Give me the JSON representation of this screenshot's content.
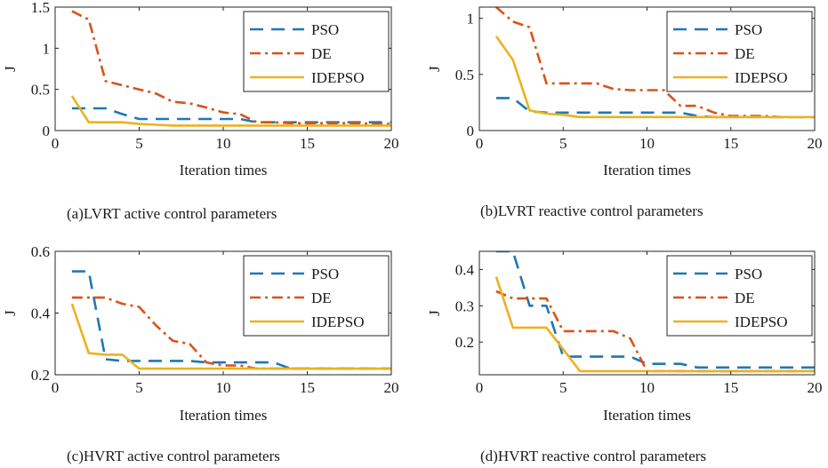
{
  "figure": {
    "background": "#ffffff",
    "axis_color": "#262626",
    "series_styles": [
      {
        "name": "PSO",
        "color": "#1f77b4",
        "dash": "dashed"
      },
      {
        "name": "DE",
        "color": "#d95319",
        "dash": "dashdot"
      },
      {
        "name": "IDEPSO",
        "color": "#edb120",
        "dash": "solid"
      }
    ]
  },
  "chart_data": [
    {
      "type": "line",
      "caption": "(a)LVRT active control parameters",
      "xlabel": "Iteration times",
      "ylabel": "J",
      "xlim": [
        0,
        20
      ],
      "ylim": [
        0,
        1.5
      ],
      "xticks": [
        0,
        5,
        10,
        15,
        20
      ],
      "yticks": [
        0,
        0.5,
        1,
        1.5
      ],
      "xtick_labels": [
        "0",
        "5",
        "10",
        "15",
        "20"
      ],
      "ytick_labels": [
        "0",
        "0.5",
        "1",
        "1.5"
      ],
      "legend": [
        "PSO",
        "DE",
        "IDEPSO"
      ],
      "legend_position": "top-right",
      "series": [
        {
          "name": "PSO",
          "x": [
            1,
            2,
            3,
            4,
            5,
            6,
            7,
            8,
            9,
            10,
            11,
            12,
            13,
            14,
            15,
            16,
            17,
            18,
            19,
            20
          ],
          "values": [
            0.27,
            0.27,
            0.27,
            0.2,
            0.14,
            0.14,
            0.14,
            0.14,
            0.14,
            0.14,
            0.14,
            0.1,
            0.1,
            0.1,
            0.1,
            0.1,
            0.1,
            0.1,
            0.1,
            0.1
          ]
        },
        {
          "name": "DE",
          "x": [
            1,
            2,
            3,
            4,
            5,
            6,
            7,
            8,
            9,
            10,
            11,
            12,
            13,
            14,
            15,
            16,
            17,
            18,
            19,
            20
          ],
          "values": [
            1.45,
            1.35,
            0.6,
            0.55,
            0.5,
            0.45,
            0.35,
            0.33,
            0.28,
            0.22,
            0.2,
            0.1,
            0.1,
            0.09,
            0.09,
            0.09,
            0.09,
            0.09,
            0.08,
            0.08
          ]
        },
        {
          "name": "IDEPSO",
          "x": [
            1,
            2,
            3,
            4,
            5,
            6,
            7,
            8,
            9,
            10,
            11,
            12,
            13,
            14,
            15,
            16,
            17,
            18,
            19,
            20
          ],
          "values": [
            0.42,
            0.1,
            0.1,
            0.1,
            0.08,
            0.07,
            0.06,
            0.06,
            0.06,
            0.06,
            0.06,
            0.06,
            0.06,
            0.06,
            0.06,
            0.06,
            0.06,
            0.06,
            0.06,
            0.06
          ]
        }
      ]
    },
    {
      "type": "line",
      "caption": "(b)LVRT reactive control parameters",
      "xlabel": "Iteration times",
      "ylabel": "J",
      "xlim": [
        0,
        20
      ],
      "ylim": [
        0,
        1.1
      ],
      "xticks": [
        0,
        5,
        10,
        15,
        20
      ],
      "yticks": [
        0,
        0.5,
        1
      ],
      "xtick_labels": [
        "0",
        "5",
        "10",
        "15",
        "20"
      ],
      "ytick_labels": [
        "0",
        "0.5",
        "1"
      ],
      "legend": [
        "PSO",
        "DE",
        "IDEPSO"
      ],
      "legend_position": "top-right",
      "series": [
        {
          "name": "PSO",
          "x": [
            1,
            2,
            3,
            4,
            5,
            6,
            7,
            8,
            9,
            10,
            11,
            12,
            13,
            14,
            15,
            16,
            17,
            18,
            19,
            20
          ],
          "values": [
            0.29,
            0.29,
            0.17,
            0.16,
            0.16,
            0.16,
            0.16,
            0.16,
            0.16,
            0.16,
            0.16,
            0.16,
            0.13,
            0.12,
            0.12,
            0.12,
            0.12,
            0.12,
            0.12,
            0.12
          ]
        },
        {
          "name": "DE",
          "x": [
            1,
            2,
            3,
            4,
            5,
            6,
            7,
            8,
            9,
            10,
            11,
            12,
            13,
            14,
            15,
            16,
            17,
            18,
            19,
            20
          ],
          "values": [
            1.1,
            0.97,
            0.92,
            0.42,
            0.42,
            0.42,
            0.42,
            0.37,
            0.36,
            0.36,
            0.36,
            0.22,
            0.22,
            0.16,
            0.13,
            0.13,
            0.13,
            0.12,
            0.12,
            0.12
          ]
        },
        {
          "name": "IDEPSO",
          "x": [
            1,
            2,
            3,
            4,
            5,
            6,
            7,
            8,
            9,
            10,
            11,
            12,
            13,
            14,
            15,
            16,
            17,
            18,
            19,
            20
          ],
          "values": [
            0.84,
            0.63,
            0.18,
            0.15,
            0.14,
            0.12,
            0.12,
            0.12,
            0.12,
            0.12,
            0.12,
            0.12,
            0.12,
            0.12,
            0.12,
            0.12,
            0.12,
            0.12,
            0.12,
            0.12
          ]
        }
      ]
    },
    {
      "type": "line",
      "caption": "(c)HVRT active control parameters",
      "xlabel": "Iteration times",
      "ylabel": "J",
      "xlim": [
        0,
        20
      ],
      "ylim": [
        0.2,
        0.6
      ],
      "xticks": [
        0,
        5,
        10,
        15,
        20
      ],
      "yticks": [
        0.2,
        0.4,
        0.6
      ],
      "xtick_labels": [
        "0",
        "5",
        "10",
        "15",
        "20"
      ],
      "ytick_labels": [
        "0.2",
        "0.4",
        "0.6"
      ],
      "legend": [
        "PSO",
        "DE",
        "IDEPSO"
      ],
      "legend_position": "top-right",
      "series": [
        {
          "name": "PSO",
          "x": [
            1,
            2,
            3,
            4,
            5,
            6,
            7,
            8,
            9,
            10,
            11,
            12,
            13,
            14,
            15,
            16,
            17,
            18,
            19,
            20
          ],
          "values": [
            0.535,
            0.535,
            0.25,
            0.245,
            0.245,
            0.245,
            0.245,
            0.245,
            0.24,
            0.24,
            0.24,
            0.24,
            0.24,
            0.22,
            0.22,
            0.22,
            0.22,
            0.22,
            0.22,
            0.22
          ]
        },
        {
          "name": "DE",
          "x": [
            1,
            2,
            3,
            4,
            5,
            6,
            7,
            8,
            9,
            10,
            11,
            12,
            13,
            14,
            15,
            16,
            17,
            18,
            19,
            20
          ],
          "values": [
            0.45,
            0.45,
            0.45,
            0.43,
            0.42,
            0.36,
            0.31,
            0.3,
            0.24,
            0.23,
            0.23,
            0.22,
            0.22,
            0.22,
            0.22,
            0.22,
            0.22,
            0.22,
            0.22,
            0.22
          ]
        },
        {
          "name": "IDEPSO",
          "x": [
            1,
            2,
            3,
            4,
            5,
            6,
            7,
            8,
            9,
            10,
            11,
            12,
            13,
            14,
            15,
            16,
            17,
            18,
            19,
            20
          ],
          "values": [
            0.43,
            0.27,
            0.265,
            0.265,
            0.22,
            0.22,
            0.22,
            0.22,
            0.22,
            0.22,
            0.22,
            0.22,
            0.22,
            0.22,
            0.22,
            0.22,
            0.22,
            0.22,
            0.22,
            0.22
          ]
        }
      ]
    },
    {
      "type": "line",
      "caption": "(d)HVRT reactive control parameters",
      "xlabel": "Iteration times",
      "ylabel": "J",
      "xlim": [
        0,
        20
      ],
      "ylim": [
        0.11,
        0.45
      ],
      "xticks": [
        0,
        5,
        10,
        15,
        20
      ],
      "yticks": [
        0.2,
        0.3,
        0.4
      ],
      "xtick_labels": [
        "0",
        "5",
        "10",
        "15",
        "20"
      ],
      "ytick_labels": [
        "0.2",
        "0.3",
        "0.4"
      ],
      "legend": [
        "PSO",
        "DE",
        "IDEPSO"
      ],
      "legend_position": "top-right",
      "series": [
        {
          "name": "PSO",
          "x": [
            1,
            2,
            3,
            4,
            5,
            6,
            7,
            8,
            9,
            10,
            11,
            12,
            13,
            14,
            15,
            16,
            17,
            18,
            19,
            20
          ],
          "values": [
            0.45,
            0.45,
            0.3,
            0.3,
            0.16,
            0.16,
            0.16,
            0.16,
            0.16,
            0.14,
            0.14,
            0.14,
            0.13,
            0.13,
            0.13,
            0.13,
            0.13,
            0.13,
            0.13,
            0.13
          ]
        },
        {
          "name": "DE",
          "x": [
            1,
            2,
            3,
            4,
            5,
            6,
            7,
            8,
            9,
            10,
            11,
            12,
            13,
            14,
            15,
            16,
            17,
            18,
            19,
            20
          ],
          "values": [
            0.34,
            0.32,
            0.32,
            0.32,
            0.23,
            0.23,
            0.23,
            0.23,
            0.21,
            0.12,
            0.12,
            0.12,
            0.12,
            0.12,
            0.12,
            0.12,
            0.12,
            0.12,
            0.12,
            0.12
          ]
        },
        {
          "name": "IDEPSO",
          "x": [
            1,
            2,
            3,
            4,
            5,
            6,
            7,
            8,
            9,
            10,
            11,
            12,
            13,
            14,
            15,
            16,
            17,
            18,
            19,
            20
          ],
          "values": [
            0.38,
            0.24,
            0.24,
            0.24,
            0.18,
            0.12,
            0.12,
            0.12,
            0.12,
            0.12,
            0.12,
            0.12,
            0.12,
            0.12,
            0.12,
            0.12,
            0.12,
            0.12,
            0.12,
            0.12
          ]
        }
      ]
    }
  ]
}
